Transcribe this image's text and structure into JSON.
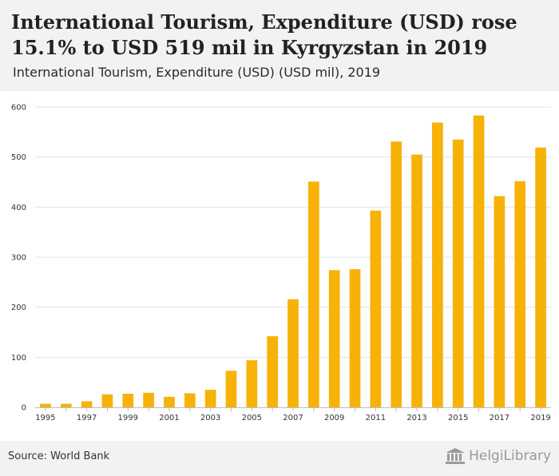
{
  "header": {
    "title": "International Tourism, Expenditure (USD) rose 15.1% to USD 519 mil in Kyrgyzstan in 2019",
    "subtitle": "International Tourism, Expenditure (USD) (USD mil), 2019"
  },
  "footer": {
    "source": "Source: World Bank",
    "brand": "HelgiLibrary"
  },
  "colors": {
    "bar": "#f7b208",
    "grid": "#e3e3e3",
    "header_bg": "#f2f2f2"
  },
  "chart_data": {
    "type": "bar",
    "title": "International Tourism, Expenditure (USD) (USD mil), 2019",
    "xlabel": "",
    "ylabel": "",
    "ylim": [
      0,
      600
    ],
    "yticks": [
      0,
      100,
      200,
      300,
      400,
      500,
      600
    ],
    "grid": true,
    "categories": [
      "1995",
      "1996",
      "1997",
      "1998",
      "1999",
      "2000",
      "2001",
      "2002",
      "2003",
      "2004",
      "2005",
      "2006",
      "2007",
      "2008",
      "2009",
      "2010",
      "2011",
      "2012",
      "2013",
      "2014",
      "2015",
      "2016",
      "2017",
      "2018",
      "2019"
    ],
    "xtick_labels": [
      "1995",
      "1997",
      "1999",
      "2001",
      "2003",
      "2005",
      "2007",
      "2009",
      "2011",
      "2013",
      "2015",
      "2017",
      "2019"
    ],
    "series": [
      {
        "name": "International Tourism, Expenditure (USD)",
        "values": [
          7,
          7,
          12,
          26,
          27,
          29,
          21,
          28,
          35,
          73,
          94,
          142,
          216,
          451,
          274,
          276,
          393,
          531,
          505,
          569,
          535,
          583,
          422,
          452,
          519
        ]
      }
    ]
  }
}
